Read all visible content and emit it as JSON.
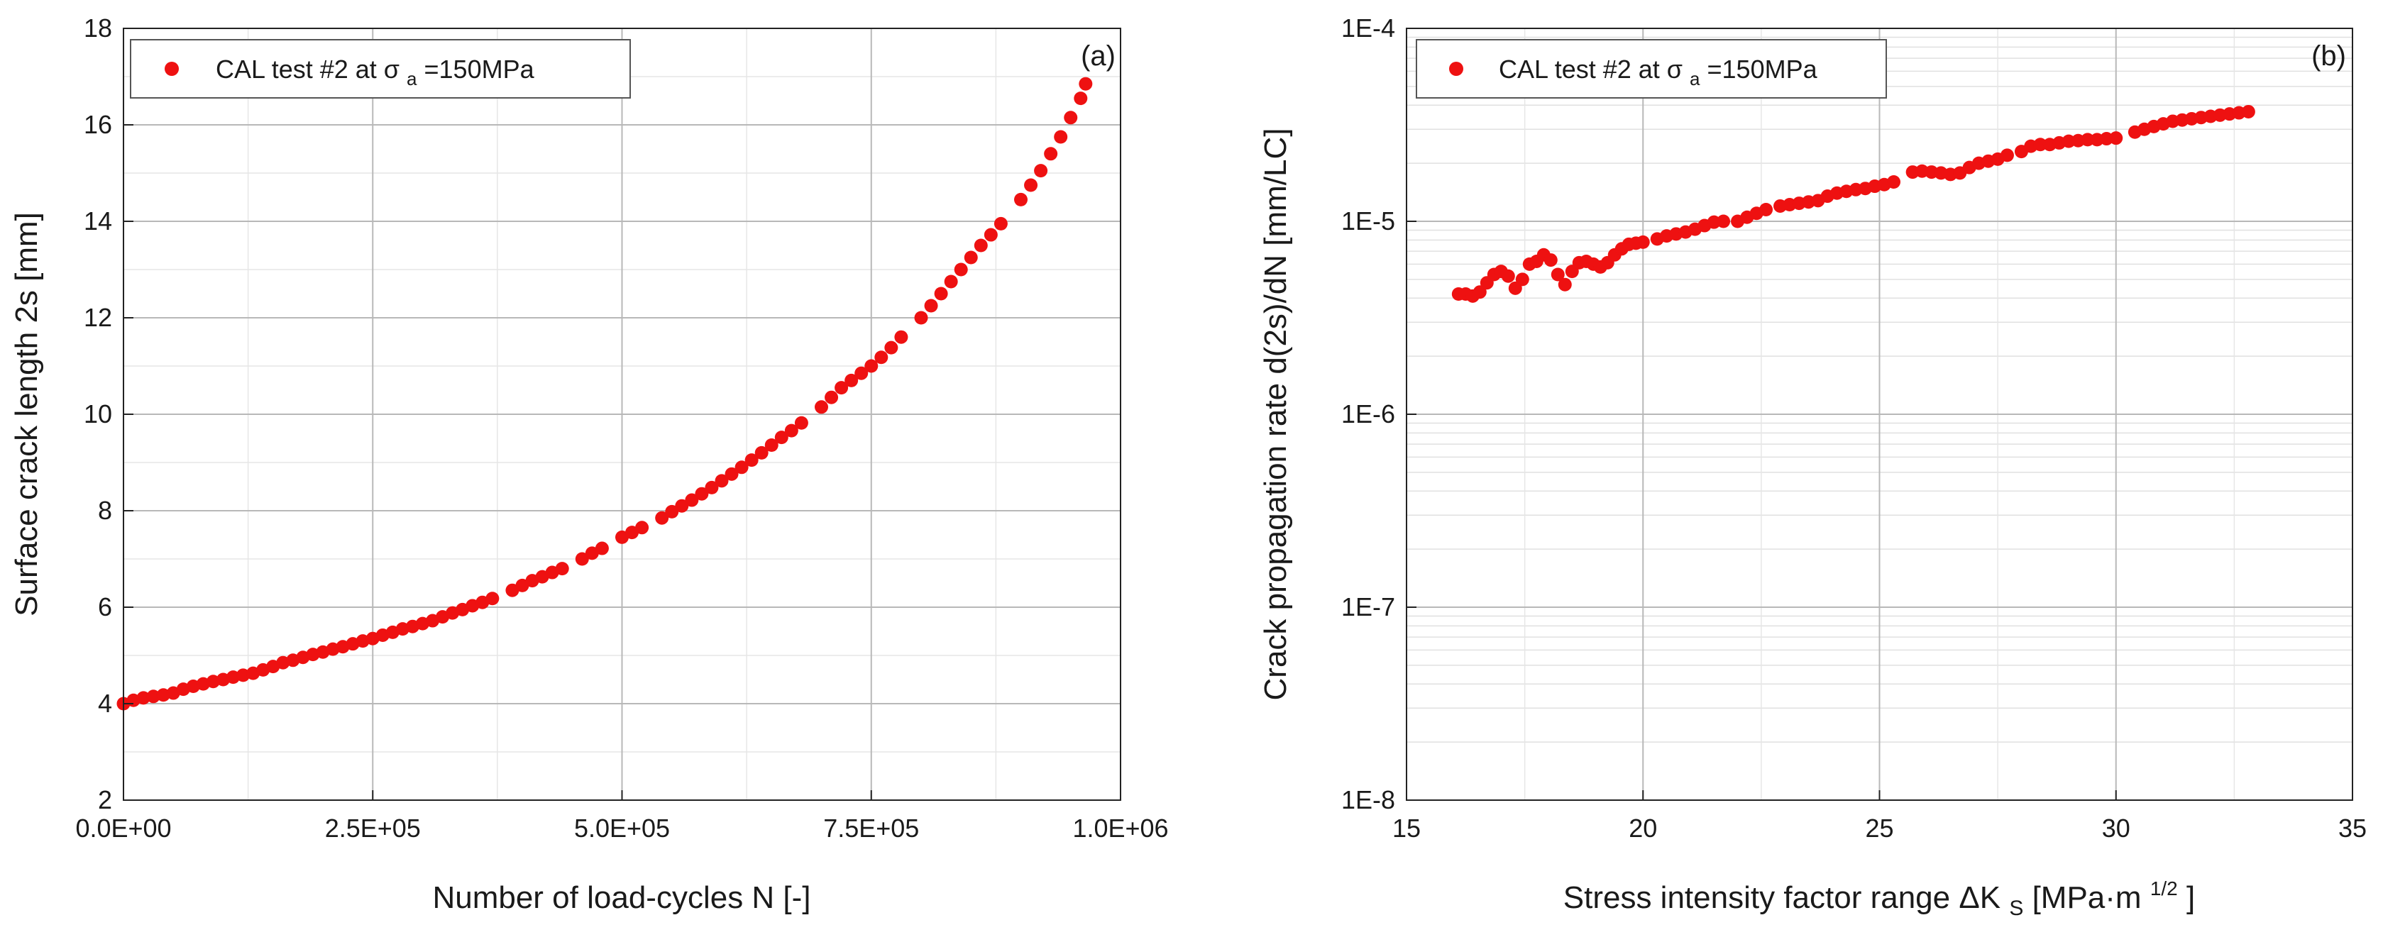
{
  "chart_data": [
    {
      "type": "scatter",
      "panel_label": "(a)",
      "legend": {
        "prefix": "CAL test #2 at ",
        "sigma": "σ",
        "subscript": "a",
        "suffix": "=150MPa",
        "placement": "top-left"
      },
      "xlabel": "Number of load-cycles N [-]",
      "ylabel": "Surface crack length 2s [mm]",
      "xlim": [
        0,
        1000000
      ],
      "ylim": [
        2,
        18
      ],
      "xscale": "linear",
      "yscale": "linear",
      "grid": true,
      "xticks": [
        0,
        250000,
        500000,
        750000,
        1000000
      ],
      "xtick_labels": [
        "0.0E+00",
        "2.5E+05",
        "5.0E+05",
        "7.5E+05",
        "1.0E+06"
      ],
      "yticks": [
        2,
        4,
        6,
        8,
        10,
        12,
        14,
        16,
        18
      ],
      "ytick_labels": [
        "2",
        "4",
        "6",
        "8",
        "10",
        "12",
        "14",
        "16",
        "18"
      ],
      "color": "#ee1111",
      "series": [
        {
          "name": "CAL test #2 at σa=150MPa",
          "x": [
            0,
            10000,
            20000,
            30000,
            40000,
            50000,
            60000,
            70000,
            80000,
            90000,
            100000,
            110000,
            120000,
            130000,
            140000,
            150000,
            160000,
            170000,
            180000,
            190000,
            200000,
            210000,
            220000,
            230000,
            240000,
            250000,
            260000,
            270000,
            280000,
            290000,
            300000,
            310000,
            320000,
            330000,
            340000,
            350000,
            360000,
            370000,
            390000,
            400000,
            410000,
            420000,
            430000,
            440000,
            460000,
            470000,
            480000,
            500000,
            510000,
            520000,
            540000,
            550000,
            560000,
            570000,
            580000,
            590000,
            600000,
            610000,
            620000,
            630000,
            640000,
            650000,
            660000,
            670000,
            680000,
            700000,
            710000,
            720000,
            730000,
            740000,
            750000,
            760000,
            770000,
            780000,
            800000,
            810000,
            820000,
            830000,
            840000,
            850000,
            860000,
            870000,
            880000,
            900000,
            910000,
            920000,
            930000,
            940000,
            950000,
            960000,
            965000
          ],
          "y": [
            4.0,
            4.07,
            4.12,
            4.15,
            4.18,
            4.22,
            4.3,
            4.36,
            4.41,
            4.46,
            4.5,
            4.55,
            4.59,
            4.63,
            4.7,
            4.77,
            4.85,
            4.9,
            4.96,
            5.02,
            5.07,
            5.13,
            5.18,
            5.24,
            5.3,
            5.35,
            5.42,
            5.48,
            5.55,
            5.6,
            5.66,
            5.72,
            5.8,
            5.88,
            5.95,
            6.03,
            6.1,
            6.18,
            6.35,
            6.45,
            6.55,
            6.63,
            6.72,
            6.8,
            7.0,
            7.12,
            7.22,
            7.45,
            7.55,
            7.65,
            7.85,
            7.98,
            8.1,
            8.22,
            8.35,
            8.48,
            8.62,
            8.76,
            8.9,
            9.05,
            9.2,
            9.36,
            9.52,
            9.66,
            9.82,
            10.15,
            10.35,
            10.55,
            10.7,
            10.85,
            11.0,
            11.18,
            11.38,
            11.6,
            12.0,
            12.25,
            12.5,
            12.75,
            13.0,
            13.25,
            13.5,
            13.72,
            13.95,
            14.45,
            14.75,
            15.05,
            15.4,
            15.75,
            16.15,
            16.55,
            16.85
          ]
        }
      ]
    },
    {
      "type": "scatter",
      "panel_label": "(b)",
      "legend": {
        "prefix": "CAL test #2 at ",
        "sigma": "σ",
        "subscript": "a",
        "suffix": "=150MPa",
        "placement": "top-left"
      },
      "xlabel_main": "Stress intensity factor range ΔK",
      "xlabel_sub": "S",
      "xlabel_unit": " [MPa·m",
      "xlabel_sup": "1/2",
      "xlabel_close": "]",
      "ylabel": "Crack propagation rate d(2s)/dN [mm/LC]",
      "xlim": [
        15,
        35
      ],
      "ylim": [
        1e-08,
        0.0001
      ],
      "xscale": "linear",
      "yscale": "log",
      "grid": true,
      "xticks": [
        15,
        20,
        25,
        30,
        35
      ],
      "xtick_labels": [
        "15",
        "20",
        "25",
        "30",
        "35"
      ],
      "yticks": [
        1e-08,
        1e-07,
        1e-06,
        1e-05,
        0.0001
      ],
      "ytick_labels": [
        "1E-8",
        "1E-7",
        "1E-6",
        "1E-5",
        "1E-4"
      ],
      "color": "#ee1111",
      "series": [
        {
          "name": "CAL test #2 at σa=150MPa",
          "x": [
            16.1,
            16.25,
            16.4,
            16.55,
            16.7,
            16.85,
            17.0,
            17.15,
            17.3,
            17.45,
            17.6,
            17.75,
            17.9,
            18.05,
            18.2,
            18.35,
            18.5,
            18.65,
            18.8,
            18.95,
            19.1,
            19.25,
            19.4,
            19.55,
            19.7,
            19.85,
            20.0,
            20.3,
            20.5,
            20.7,
            20.9,
            21.1,
            21.3,
            21.5,
            21.7,
            22.0,
            22.2,
            22.4,
            22.6,
            22.9,
            23.1,
            23.3,
            23.5,
            23.7,
            23.9,
            24.1,
            24.3,
            24.5,
            24.7,
            24.9,
            25.1,
            25.3,
            25.7,
            25.9,
            26.1,
            26.3,
            26.5,
            26.7,
            26.9,
            27.1,
            27.3,
            27.5,
            27.7,
            28.0,
            28.2,
            28.4,
            28.6,
            28.8,
            29.0,
            29.2,
            29.4,
            29.6,
            29.8,
            30.0,
            30.4,
            30.6,
            30.8,
            31.0,
            31.2,
            31.4,
            31.6,
            31.8,
            32.0,
            32.2,
            32.4,
            32.6,
            32.8
          ],
          "y": [
            4.2e-06,
            4.2e-06,
            4.1e-06,
            4.3e-06,
            4.8e-06,
            5.3e-06,
            5.5e-06,
            5.2e-06,
            4.5e-06,
            5e-06,
            6e-06,
            6.2e-06,
            6.7e-06,
            6.3e-06,
            5.3e-06,
            4.7e-06,
            5.5e-06,
            6.1e-06,
            6.2e-06,
            6e-06,
            5.8e-06,
            6.1e-06,
            6.7e-06,
            7.2e-06,
            7.6e-06,
            7.7e-06,
            7.8e-06,
            8.1e-06,
            8.4e-06,
            8.6e-06,
            8.8e-06,
            9.1e-06,
            9.5e-06,
            9.9e-06,
            1e-05,
            1e-05,
            1.05e-05,
            1.1e-05,
            1.15e-05,
            1.2e-05,
            1.22e-05,
            1.24e-05,
            1.26e-05,
            1.28e-05,
            1.35e-05,
            1.4e-05,
            1.43e-05,
            1.46e-05,
            1.48e-05,
            1.52e-05,
            1.55e-05,
            1.6e-05,
            1.8e-05,
            1.82e-05,
            1.8e-05,
            1.78e-05,
            1.75e-05,
            1.78e-05,
            1.9e-05,
            2e-05,
            2.05e-05,
            2.1e-05,
            2.2e-05,
            2.3e-05,
            2.45e-05,
            2.5e-05,
            2.5e-05,
            2.55e-05,
            2.6e-05,
            2.62e-05,
            2.65e-05,
            2.65e-05,
            2.68e-05,
            2.7e-05,
            2.9e-05,
            3e-05,
            3.1e-05,
            3.2e-05,
            3.3e-05,
            3.35e-05,
            3.4e-05,
            3.45e-05,
            3.5e-05,
            3.55e-05,
            3.6e-05,
            3.65e-05,
            3.7e-05
          ]
        }
      ]
    }
  ]
}
